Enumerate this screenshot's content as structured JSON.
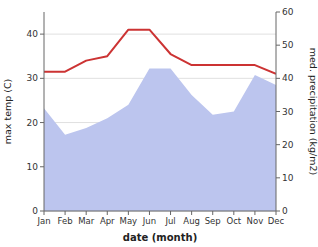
{
  "chart_data": {
    "type": "line",
    "categories": [
      "Jan",
      "Feb",
      "Mar",
      "Apr",
      "May",
      "Jun",
      "Jul",
      "Aug",
      "Sep",
      "Oct",
      "Nov",
      "Dec"
    ],
    "series": [
      {
        "type": "area",
        "axis": "y2",
        "color": "#bcc5ee",
        "values": [
          31,
          23,
          25,
          28,
          32,
          43,
          43,
          35,
          29,
          30,
          41,
          38
        ]
      },
      {
        "type": "line",
        "color": "#cc3333",
        "values": [
          31.5,
          31.5,
          34.0,
          35.0,
          41.0,
          41.0,
          35.5,
          33.0,
          33.0,
          33.0,
          33.0,
          31.0
        ]
      }
    ],
    "xlabel": "date (month)",
    "ylabel": "max temp (C)",
    "y2label": "med. precipitation (kg/m2)",
    "ylim": [
      0,
      45
    ],
    "yticks": [
      0,
      10,
      20,
      30,
      40
    ],
    "y2lim": [
      0,
      60
    ],
    "y2ticks": [
      0,
      10,
      20,
      30,
      40,
      50,
      60
    ],
    "grid": true
  }
}
